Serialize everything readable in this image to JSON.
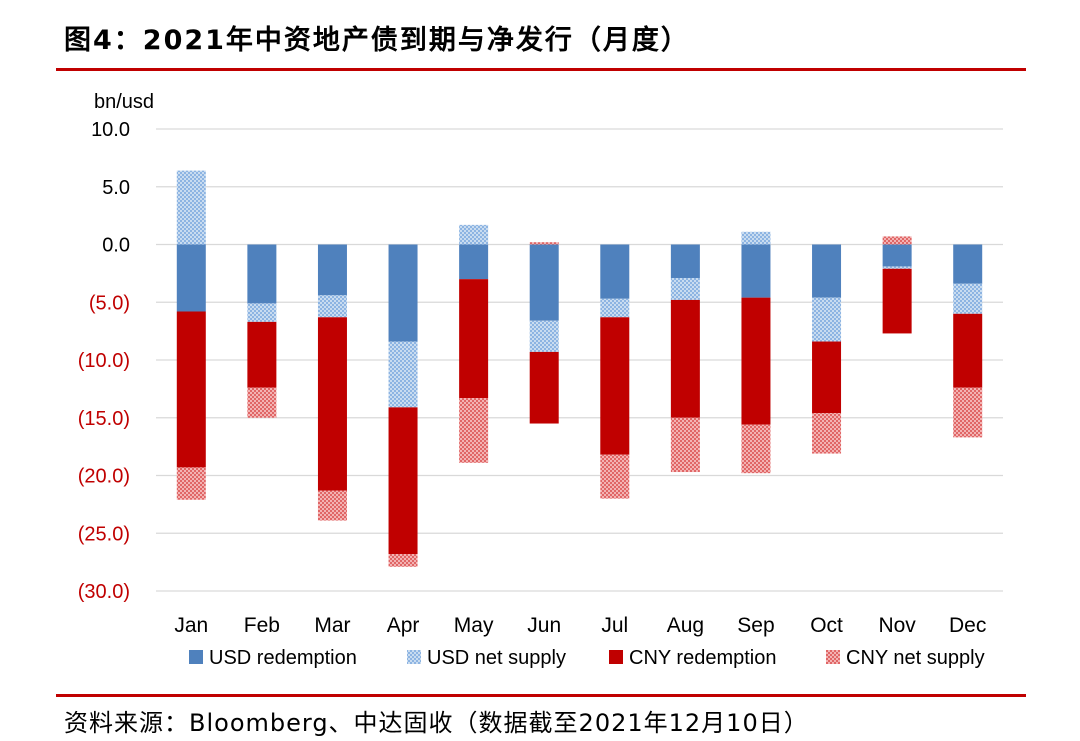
{
  "title": "图4：2021年中资地产债到期与净发行（月度）",
  "source": "资料来源：Bloomberg、中达固收（数据截至2021年12月10日）",
  "colors": {
    "usd_redemption": "#4f81bd",
    "usd_net_supply": "#9dc3e6",
    "cny_redemption": "#c00000",
    "cny_net_supply": "#e57373",
    "axis_negative": "#c00000",
    "rule": "#c00000"
  },
  "chart_data": {
    "type": "bar",
    "stacked": true,
    "unit_label": "bn/usd",
    "ylim": [
      -30,
      10
    ],
    "y_ticks": [
      10,
      5,
      0,
      -5,
      -10,
      -15,
      -20,
      -25,
      -30
    ],
    "y_tick_labels": [
      "10.0",
      "5.0",
      "0.0",
      "(5.0)",
      "(10.0)",
      "(15.0)",
      "(20.0)",
      "(25.0)",
      "(30.0)"
    ],
    "grid": true,
    "legend_position": "bottom",
    "categories": [
      "Jan",
      "Feb",
      "Mar",
      "Apr",
      "May",
      "Jun",
      "Jul",
      "Aug",
      "Sep",
      "Oct",
      "Nov",
      "Dec"
    ],
    "series": [
      {
        "name": "USD redemption",
        "key": "usd_redemption",
        "values": [
          -5.8,
          -5.1,
          -4.4,
          -8.4,
          -3.0,
          -6.6,
          -4.7,
          -2.9,
          -4.6,
          -4.6,
          -1.9,
          -3.4
        ]
      },
      {
        "name": "USD net supply",
        "key": "usd_net_supply",
        "values": [
          6.4,
          -1.6,
          -1.9,
          -5.7,
          1.7,
          -2.7,
          -1.6,
          -1.9,
          1.1,
          -3.8,
          -0.2,
          -2.6
        ]
      },
      {
        "name": "CNY redemption",
        "key": "cny_redemption",
        "values": [
          -13.5,
          -5.7,
          -15.0,
          -12.7,
          -10.3,
          -6.2,
          -11.9,
          -10.2,
          -11.0,
          -6.2,
          -5.6,
          -6.4
        ]
      },
      {
        "name": "CNY net supply",
        "key": "cny_net_supply",
        "values": [
          -2.8,
          -2.6,
          -2.6,
          -1.1,
          -5.6,
          0.2,
          -3.8,
          -4.7,
          -4.2,
          -3.5,
          0.7,
          -4.3
        ]
      }
    ]
  }
}
